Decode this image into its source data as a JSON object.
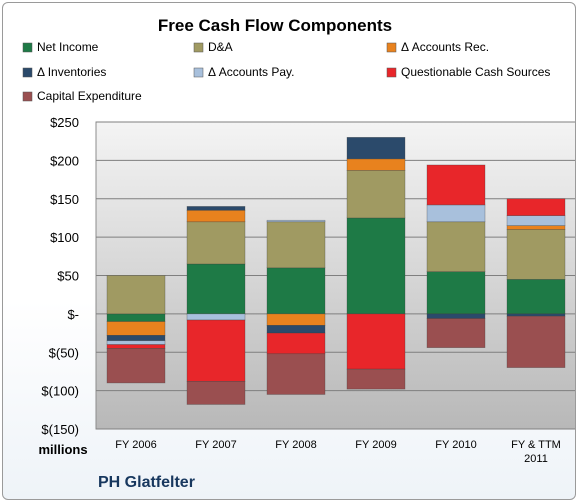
{
  "chart_data": {
    "type": "bar",
    "stacked": true,
    "title": "Free Cash Flow Components",
    "units_label": "millions",
    "company": "PH Glatfelter",
    "categories": [
      "FY 2006",
      "FY 2007",
      "FY 2008",
      "FY 2009",
      "FY 2010",
      "FY & TTM 2011"
    ],
    "ylim": [
      -150,
      250
    ],
    "yticks": [
      250,
      200,
      150,
      100,
      50,
      0,
      -50,
      -100,
      -150
    ],
    "ytick_labels": [
      "$250",
      "$200",
      "$150",
      "$100",
      "$50",
      "$-",
      "$(50)",
      "$(100)",
      "$(150)"
    ],
    "legend_position": "top",
    "series": [
      {
        "name": "Net Income",
        "color": "#1e7a46",
        "values": [
          -10,
          65,
          60,
          125,
          55,
          45
        ]
      },
      {
        "name": "D&A",
        "color": "#a09a62",
        "values": [
          50,
          55,
          60,
          62,
          65,
          65
        ]
      },
      {
        "name": "Δ Accounts Rec.",
        "color": "#e8821e",
        "values": [
          -18,
          15,
          -15,
          15,
          0,
          5
        ]
      },
      {
        "name": "Δ Inventories",
        "color": "#2b4a6b",
        "values": [
          -7,
          5,
          -10,
          28,
          -6,
          -3
        ]
      },
      {
        "name": "Δ Accounts Pay.",
        "color": "#a8c0dc",
        "values": [
          -5,
          -8,
          2,
          0,
          22,
          13
        ]
      },
      {
        "name": "Questionable Cash Sources",
        "color": "#e8262a",
        "values": [
          -5,
          -80,
          -27,
          -72,
          52,
          22
        ]
      },
      {
        "name": "Capital Expenditure",
        "color": "#9a4f50",
        "values": [
          -45,
          -30,
          -53,
          -26,
          -38,
          -67
        ]
      }
    ]
  }
}
